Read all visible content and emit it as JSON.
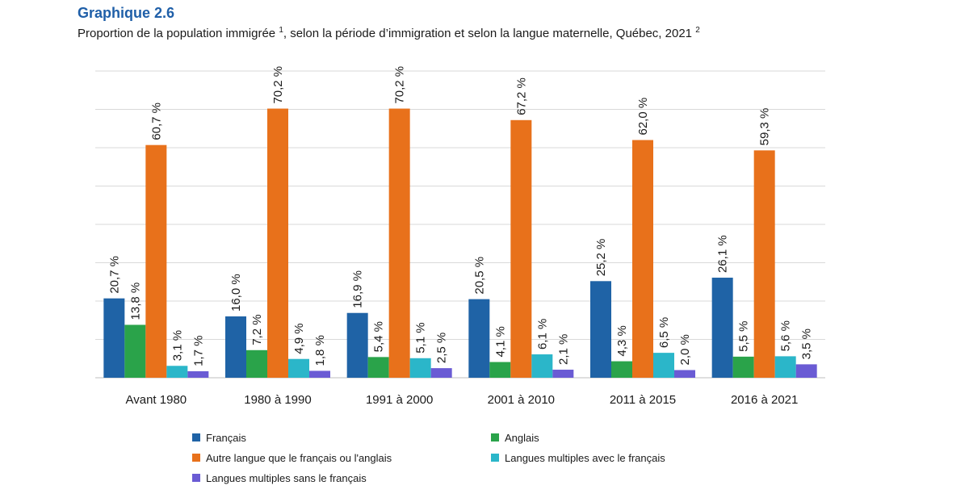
{
  "header": {
    "chart_number": "Graphique 2.6",
    "title_main": "Proportion de la population immigrée ",
    "note1": "1",
    "title_rest": ", selon la période d’immigration et selon la langue maternelle, Québec, 2021 ",
    "note2": "2"
  },
  "colors": {
    "francais": "#1f63a6",
    "anglais": "#2aa34a",
    "autre": "#e8711b",
    "multi_avec": "#2bb6c9",
    "multi_sans": "#6a5bd4",
    "grid": "#d9d9d9",
    "axis": "#bfbfbf"
  },
  "chart_data": {
    "type": "bar",
    "title": "Proportion de la population immigrée, selon la période d’immigration et selon la langue maternelle, Québec, 2021",
    "xlabel": "",
    "ylabel": "",
    "ylim": [
      0,
      80
    ],
    "grid": true,
    "unit": "%",
    "categories": [
      "Avant 1980",
      "1980 à 1990",
      "1991 à 2000",
      "2001 à 2010",
      "2011 à 2015",
      "2016 à 2021"
    ],
    "series": [
      {
        "name": "Français",
        "key": "francais",
        "values": [
          20.7,
          16.0,
          16.9,
          20.5,
          25.2,
          26.1
        ],
        "labels": [
          "20,7 %",
          "16,0 %",
          "16,9 %",
          "20,5 %",
          "25,2 %",
          "26,1 %"
        ]
      },
      {
        "name": "Anglais",
        "key": "anglais",
        "values": [
          13.8,
          7.2,
          5.4,
          4.1,
          4.3,
          5.5
        ],
        "labels": [
          "13,8 %",
          "7,2 %",
          "5,4 %",
          "4,1 %",
          "4,3 %",
          "5,5 %"
        ]
      },
      {
        "name": "Autre langue que le français ou l'anglais",
        "key": "autre",
        "values": [
          60.7,
          70.2,
          70.2,
          67.2,
          62.0,
          59.3
        ],
        "labels": [
          "60,7 %",
          "70,2 %",
          "70,2 %",
          "67,2 %",
          "62,0 %",
          "59,3 %"
        ]
      },
      {
        "name": "Langues multiples avec le français",
        "key": "multi_avec",
        "values": [
          3.1,
          4.9,
          5.1,
          6.1,
          6.5,
          5.6
        ],
        "labels": [
          "3,1 %",
          "4,9 %",
          "5,1 %",
          "6,1 %",
          "6,5 %",
          "5,6 %"
        ]
      },
      {
        "name": "Langues multiples sans le français",
        "key": "multi_sans",
        "values": [
          1.7,
          1.8,
          2.5,
          2.1,
          2.0,
          3.5
        ],
        "labels": [
          "1,7 %",
          "1,8 %",
          "2,5 %",
          "2,1 %",
          "2,0 %",
          "3,5 %"
        ]
      }
    ],
    "legend": {
      "placement": "bottom",
      "items": [
        {
          "label": "Français",
          "key": "francais"
        },
        {
          "label": "Anglais",
          "key": "anglais"
        },
        {
          "label": "Autre langue que le français ou l'anglais",
          "key": "autre"
        },
        {
          "label": "Langues multiples avec le français",
          "key": "multi_avec"
        },
        {
          "label": "Langues multiples sans le français",
          "key": "multi_sans"
        }
      ]
    }
  }
}
